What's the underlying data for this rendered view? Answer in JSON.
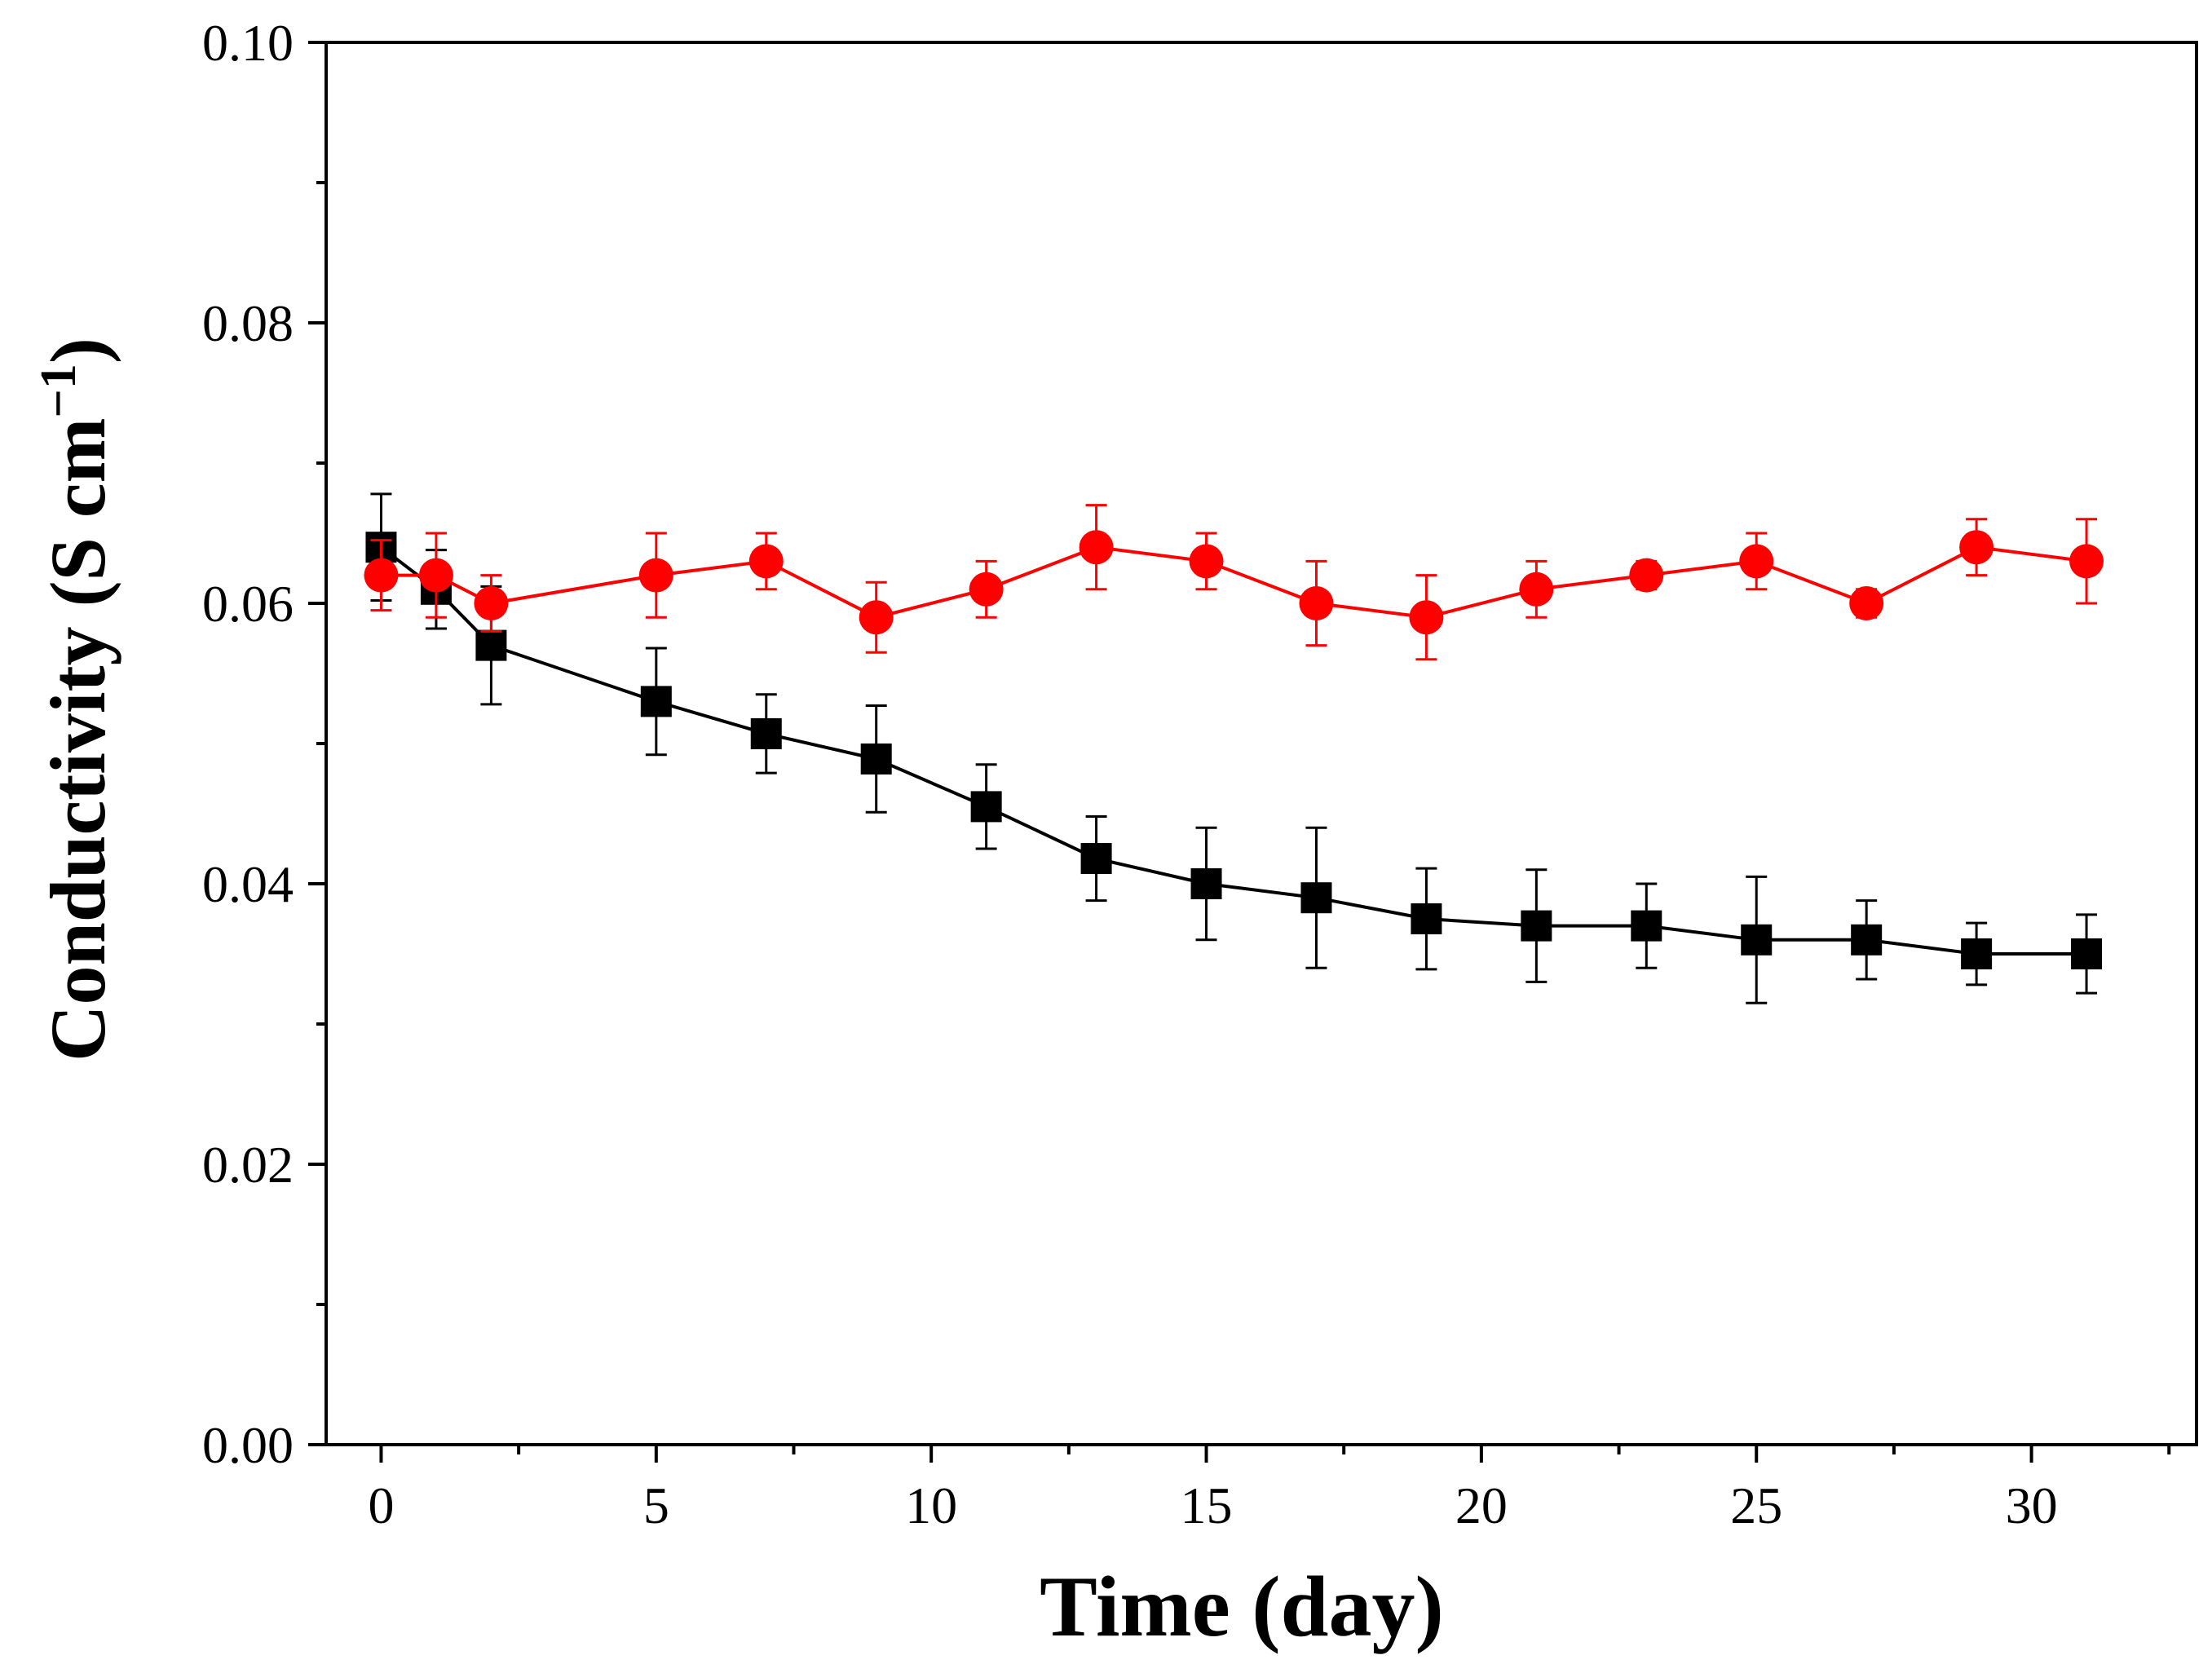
{
  "chart_data": {
    "type": "line",
    "title": "",
    "xlabel": "Time (day)",
    "ylabel": {
      "main": "Conductivity (S cm",
      "superscript": "−1",
      "close": ")"
    },
    "xlim": [
      -1,
      33
    ],
    "ylim": [
      0.0,
      0.1
    ],
    "x_ticks": [
      0,
      5,
      10,
      15,
      20,
      25,
      30
    ],
    "x_tick_labels": [
      "0",
      "5",
      "10",
      "15",
      "20",
      "25",
      "30"
    ],
    "y_ticks": [
      0.0,
      0.02,
      0.04,
      0.06,
      0.08,
      0.1
    ],
    "y_tick_labels": [
      "0.00",
      "0.02",
      "0.04",
      "0.06",
      "0.08",
      "0.10"
    ],
    "grid": false,
    "legend": null,
    "series": [
      {
        "name": "black-squares",
        "color": "#000000",
        "marker": "square",
        "x": [
          0,
          1,
          2,
          5,
          7,
          9,
          11,
          13,
          15,
          17,
          19,
          21,
          23,
          25,
          27,
          29,
          31
        ],
        "values": [
          0.064,
          0.061,
          0.057,
          0.053,
          0.0507,
          0.0489,
          0.0455,
          0.0418,
          0.04,
          0.039,
          0.0375,
          0.037,
          0.037,
          0.036,
          0.036,
          0.035,
          0.035
        ],
        "errors": [
          0.0038,
          0.0028,
          0.0042,
          0.0038,
          0.0028,
          0.0038,
          0.003,
          0.003,
          0.004,
          0.005,
          0.0036,
          0.004,
          0.003,
          0.0045,
          0.0028,
          0.0022,
          0.0028
        ]
      },
      {
        "name": "red-circles",
        "color": "#ff0000",
        "marker": "circle",
        "x": [
          0,
          1,
          2,
          5,
          7,
          9,
          11,
          13,
          15,
          17,
          19,
          21,
          23,
          25,
          27,
          29,
          31
        ],
        "values": [
          0.062,
          0.062,
          0.06,
          0.062,
          0.063,
          0.059,
          0.061,
          0.064,
          0.063,
          0.06,
          0.059,
          0.061,
          0.062,
          0.063,
          0.06,
          0.064,
          0.063
        ],
        "errors": [
          0.0025,
          0.003,
          0.002,
          0.003,
          0.002,
          0.0025,
          0.002,
          0.003,
          0.002,
          0.003,
          0.003,
          0.002,
          0.001,
          0.002,
          0.001,
          0.002,
          0.003
        ]
      }
    ]
  }
}
